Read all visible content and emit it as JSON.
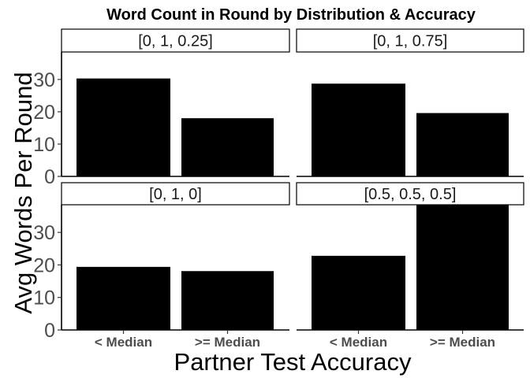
{
  "chart_data": {
    "type": "bar",
    "title": "Word Count in Round by Distribution & Accuracy",
    "xlabel": "Partner Test Accuracy",
    "ylabel": "Avg Words Per Round",
    "categories": [
      "< Median",
      ">= Median"
    ],
    "ylim": [
      0,
      38.5
    ],
    "yticks": [
      0,
      10,
      20,
      30
    ],
    "grid": false,
    "bar_color": "#000000",
    "panels": [
      {
        "label": "[0, 1, 0.25]",
        "values": [
          30.3,
          18.0
        ]
      },
      {
        "label": "[0, 1, 0.75]",
        "values": [
          28.7,
          19.6
        ]
      },
      {
        "label": "[0, 1, 0]",
        "values": [
          19.4,
          18.1
        ]
      },
      {
        "label": "[0.5, 0.5, 0.5]",
        "values": [
          22.8,
          38.5
        ]
      }
    ]
  }
}
